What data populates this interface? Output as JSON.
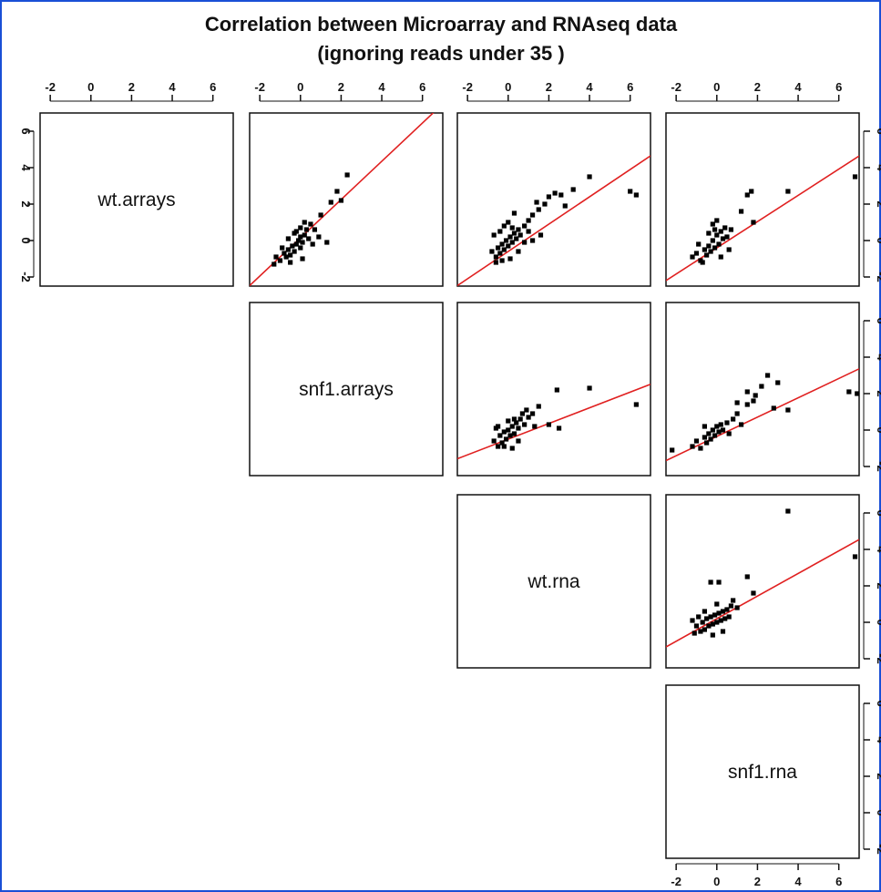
{
  "chart_data": {
    "type": "scatter",
    "title": "Correlation between Microarray and RNAseq data",
    "subtitle": "(ignoring reads under  35 )",
    "variables": [
      "wt.arrays",
      "snf1.arrays",
      "wt.rna",
      "snf1.rna"
    ],
    "axis_range": [
      -2.5,
      7.0
    ],
    "tick_labels": [
      "-2",
      "0",
      "2",
      "4",
      "6"
    ],
    "tick_values": [
      -2,
      0,
      2,
      4,
      6
    ],
    "colors": {
      "points": "#000000",
      "fit_line": "#e02020",
      "frame": "#1a4fd6"
    },
    "panels": [
      {
        "x_var": "snf1.arrays",
        "y_var": "wt.arrays",
        "fit": {
          "intercept": 0.15,
          "slope": 1.05
        },
        "points": [
          [
            -1.2,
            -0.9
          ],
          [
            -1.0,
            -1.1
          ],
          [
            -0.8,
            -0.7
          ],
          [
            -0.7,
            -0.9
          ],
          [
            -0.6,
            -0.5
          ],
          [
            -0.5,
            -0.8
          ],
          [
            -0.4,
            -0.3
          ],
          [
            -0.3,
            -0.6
          ],
          [
            -0.2,
            -0.2
          ],
          [
            -0.1,
            0.0
          ],
          [
            0.0,
            0.2
          ],
          [
            0.1,
            -0.1
          ],
          [
            0.2,
            0.3
          ],
          [
            0.3,
            0.6
          ],
          [
            0.5,
            0.9
          ],
          [
            -0.9,
            -0.4
          ],
          [
            -0.6,
            0.1
          ],
          [
            -0.3,
            0.4
          ],
          [
            0.0,
            0.7
          ],
          [
            0.2,
            1.0
          ],
          [
            1.0,
            1.4
          ],
          [
            1.5,
            2.1
          ],
          [
            2.0,
            2.2
          ],
          [
            2.3,
            3.6
          ],
          [
            1.8,
            2.7
          ],
          [
            0.6,
            -0.2
          ],
          [
            0.9,
            0.2
          ],
          [
            0.1,
            -1.0
          ],
          [
            -0.5,
            -1.2
          ],
          [
            0.0,
            -0.4
          ],
          [
            0.4,
            0.1
          ],
          [
            -0.2,
            0.5
          ],
          [
            1.3,
            -0.1
          ],
          [
            0.7,
            0.6
          ],
          [
            -1.3,
            -1.3
          ]
        ]
      },
      {
        "x_var": "wt.rna",
        "y_var": "wt.arrays",
        "fit": {
          "intercept": -0.6,
          "slope": 0.75
        },
        "points": [
          [
            -0.8,
            -0.6
          ],
          [
            -0.6,
            -0.9
          ],
          [
            -0.5,
            -0.4
          ],
          [
            -0.4,
            -0.7
          ],
          [
            -0.3,
            -0.2
          ],
          [
            -0.2,
            -0.5
          ],
          [
            -0.1,
            0.0
          ],
          [
            0.0,
            -0.3
          ],
          [
            0.1,
            0.2
          ],
          [
            0.2,
            -0.1
          ],
          [
            0.3,
            0.4
          ],
          [
            0.4,
            0.1
          ],
          [
            0.5,
            0.6
          ],
          [
            0.6,
            0.3
          ],
          [
            0.8,
            0.8
          ],
          [
            1.0,
            1.1
          ],
          [
            1.2,
            1.4
          ],
          [
            1.5,
            1.7
          ],
          [
            1.8,
            2.0
          ],
          [
            2.0,
            2.4
          ],
          [
            2.3,
            2.6
          ],
          [
            2.8,
            1.9
          ],
          [
            3.2,
            2.8
          ],
          [
            4.0,
            3.5
          ],
          [
            6.0,
            2.7
          ],
          [
            6.3,
            2.5
          ],
          [
            1.6,
            0.3
          ],
          [
            1.2,
            0.0
          ],
          [
            0.8,
            -0.1
          ],
          [
            -0.2,
            0.8
          ],
          [
            0.0,
            1.0
          ],
          [
            0.3,
            1.5
          ],
          [
            -0.6,
            -1.2
          ],
          [
            -0.3,
            -1.1
          ],
          [
            0.1,
            -1.0
          ],
          [
            -0.7,
            0.3
          ],
          [
            0.2,
            0.7
          ],
          [
            0.5,
            -0.6
          ],
          [
            -0.4,
            0.5
          ],
          [
            1.0,
            0.5
          ],
          [
            1.4,
            2.1
          ],
          [
            2.6,
            2.5
          ]
        ]
      },
      {
        "x_var": "snf1.rna",
        "y_var": "wt.arrays",
        "fit": {
          "intercept": -0.4,
          "slope": 0.72
        },
        "points": [
          [
            -1.2,
            -0.9
          ],
          [
            -1.0,
            -0.7
          ],
          [
            -0.8,
            -1.1
          ],
          [
            -0.6,
            -0.5
          ],
          [
            -0.5,
            -0.8
          ],
          [
            -0.4,
            -0.3
          ],
          [
            -0.3,
            -0.6
          ],
          [
            -0.2,
            0.0
          ],
          [
            -0.1,
            -0.4
          ],
          [
            0.0,
            0.3
          ],
          [
            0.1,
            -0.2
          ],
          [
            0.2,
            0.5
          ],
          [
            0.3,
            0.1
          ],
          [
            0.4,
            0.7
          ],
          [
            0.5,
            0.2
          ],
          [
            -0.4,
            0.4
          ],
          [
            -0.2,
            0.9
          ],
          [
            0.0,
            1.1
          ],
          [
            0.2,
            -0.9
          ],
          [
            -0.7,
            -1.2
          ],
          [
            1.2,
            1.6
          ],
          [
            1.5,
            2.5
          ],
          [
            1.7,
            2.7
          ],
          [
            1.8,
            1.0
          ],
          [
            3.5,
            2.7
          ],
          [
            6.8,
            3.5
          ],
          [
            0.7,
            0.6
          ],
          [
            -0.9,
            -0.2
          ],
          [
            0.6,
            -0.5
          ],
          [
            -0.1,
            0.6
          ]
        ]
      },
      {
        "x_var": "wt.rna",
        "y_var": "snf1.arrays",
        "fit": {
          "intercept": -0.5,
          "slope": 0.43
        },
        "points": [
          [
            -0.7,
            -0.6
          ],
          [
            -0.5,
            -0.9
          ],
          [
            -0.4,
            -0.3
          ],
          [
            -0.3,
            -0.7
          ],
          [
            -0.2,
            -0.1
          ],
          [
            -0.1,
            -0.5
          ],
          [
            0.0,
            0.0
          ],
          [
            0.1,
            -0.3
          ],
          [
            0.2,
            0.2
          ],
          [
            0.3,
            -0.2
          ],
          [
            0.4,
            0.4
          ],
          [
            0.5,
            0.1
          ],
          [
            0.6,
            0.6
          ],
          [
            0.8,
            0.3
          ],
          [
            1.0,
            0.7
          ],
          [
            1.2,
            0.9
          ],
          [
            0.9,
            1.1
          ],
          [
            1.5,
            1.3
          ],
          [
            0.7,
            0.9
          ],
          [
            2.5,
            0.1
          ],
          [
            2.0,
            0.3
          ],
          [
            4.0,
            2.3
          ],
          [
            6.3,
            1.4
          ],
          [
            2.4,
            2.2
          ],
          [
            -0.5,
            0.2
          ],
          [
            0.2,
            -1.0
          ],
          [
            -0.2,
            -0.9
          ],
          [
            0.3,
            0.6
          ],
          [
            1.3,
            0.2
          ],
          [
            0.0,
            0.5
          ],
          [
            -0.6,
            0.1
          ],
          [
            0.5,
            -0.6
          ]
        ]
      },
      {
        "x_var": "snf1.rna",
        "y_var": "snf1.arrays",
        "fit": {
          "intercept": -0.35,
          "slope": 0.53
        },
        "points": [
          [
            -2.2,
            -1.1
          ],
          [
            -1.2,
            -0.9
          ],
          [
            -1.0,
            -0.6
          ],
          [
            -0.8,
            -1.0
          ],
          [
            -0.6,
            -0.4
          ],
          [
            -0.5,
            -0.7
          ],
          [
            -0.4,
            -0.2
          ],
          [
            -0.3,
            -0.5
          ],
          [
            -0.2,
            0.0
          ],
          [
            -0.1,
            -0.3
          ],
          [
            0.0,
            0.2
          ],
          [
            0.1,
            -0.1
          ],
          [
            0.2,
            0.3
          ],
          [
            0.3,
            0.0
          ],
          [
            0.5,
            0.4
          ],
          [
            0.6,
            -0.2
          ],
          [
            0.8,
            0.6
          ],
          [
            1.0,
            0.9
          ],
          [
            1.2,
            0.3
          ],
          [
            1.5,
            1.4
          ],
          [
            1.8,
            1.6
          ],
          [
            1.5,
            2.1
          ],
          [
            1.9,
            1.9
          ],
          [
            2.2,
            2.4
          ],
          [
            2.5,
            3.0
          ],
          [
            2.8,
            1.2
          ],
          [
            3.0,
            2.6
          ],
          [
            3.5,
            1.1
          ],
          [
            6.5,
            2.1
          ],
          [
            6.9,
            2.0
          ],
          [
            1.0,
            1.5
          ],
          [
            -0.6,
            0.2
          ]
        ]
      },
      {
        "x_var": "snf1.rna",
        "y_var": "wt.rna",
        "fit": {
          "intercept": 0.2,
          "slope": 0.62
        },
        "points": [
          [
            -1.1,
            -0.6
          ],
          [
            -1.0,
            -0.2
          ],
          [
            -0.8,
            -0.5
          ],
          [
            -0.7,
            0.0
          ],
          [
            -0.6,
            -0.4
          ],
          [
            -0.5,
            0.2
          ],
          [
            -0.4,
            -0.2
          ],
          [
            -0.3,
            0.3
          ],
          [
            -0.2,
            -0.1
          ],
          [
            -0.1,
            0.4
          ],
          [
            0.0,
            0.0
          ],
          [
            0.1,
            0.5
          ],
          [
            0.2,
            0.1
          ],
          [
            0.3,
            0.6
          ],
          [
            0.4,
            0.2
          ],
          [
            0.5,
            0.7
          ],
          [
            0.6,
            0.3
          ],
          [
            0.7,
            0.9
          ],
          [
            -0.6,
            0.6
          ],
          [
            -0.9,
            0.3
          ],
          [
            0.0,
            1.0
          ],
          [
            0.3,
            -0.5
          ],
          [
            -0.3,
            2.2
          ],
          [
            0.1,
            2.2
          ],
          [
            1.5,
            2.5
          ],
          [
            1.8,
            1.6
          ],
          [
            3.5,
            6.1
          ],
          [
            6.8,
            3.6
          ],
          [
            0.8,
            1.2
          ],
          [
            -0.2,
            -0.7
          ],
          [
            1.0,
            0.8
          ],
          [
            -1.2,
            0.1
          ]
        ]
      }
    ]
  }
}
